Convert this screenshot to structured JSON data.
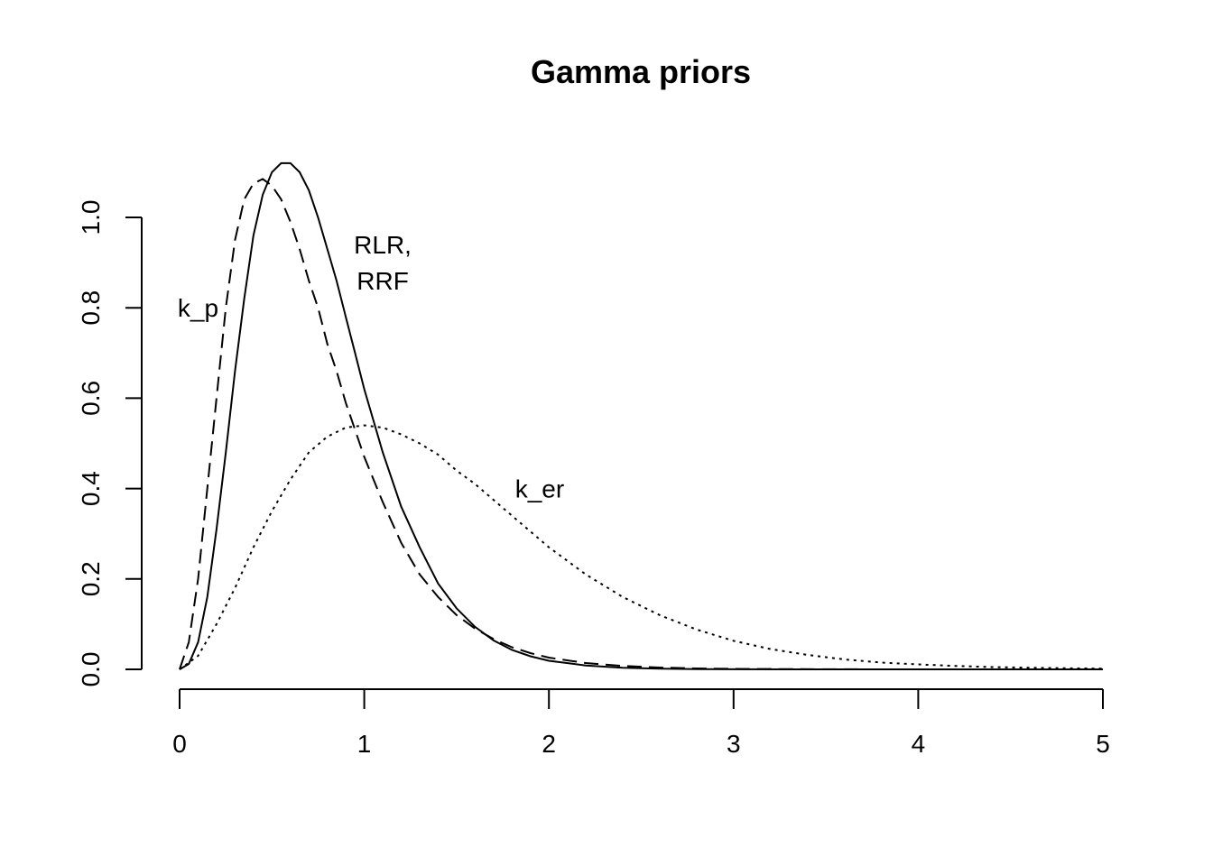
{
  "chart_data": {
    "type": "line",
    "title": "Gamma priors",
    "xlabel": "",
    "ylabel": "",
    "xlim": [
      0,
      5
    ],
    "ylim": [
      0,
      1.0
    ],
    "x_ticks": [
      "0",
      "1",
      "2",
      "3",
      "4",
      "5"
    ],
    "y_ticks": [
      "0.0",
      "0.2",
      "0.4",
      "0.6",
      "0.8",
      "1.0"
    ],
    "grid": false,
    "legend": "none",
    "series": [
      {
        "style": "solid",
        "x": [
          0,
          0.05,
          0.1,
          0.15,
          0.2,
          0.25,
          0.3,
          0.35,
          0.4,
          0.45,
          0.5,
          0.55,
          0.6,
          0.65,
          0.7,
          0.75,
          0.8,
          0.85,
          0.9,
          0.95,
          1.0,
          1.1,
          1.2,
          1.3,
          1.4,
          1.5,
          1.6,
          1.7,
          1.8,
          1.9,
          2.0,
          2.2,
          2.4,
          2.6,
          2.8,
          3.0,
          3.5,
          4.0,
          4.5,
          5.0
        ],
        "y": [
          0,
          0.012,
          0.06,
          0.16,
          0.31,
          0.48,
          0.66,
          0.82,
          0.96,
          1.05,
          1.1,
          1.12,
          1.12,
          1.1,
          1.06,
          1.0,
          0.93,
          0.86,
          0.78,
          0.7,
          0.62,
          0.48,
          0.36,
          0.27,
          0.19,
          0.135,
          0.094,
          0.064,
          0.043,
          0.029,
          0.019,
          0.0085,
          0.0036,
          0.0015,
          0.0006,
          0.00025,
          2e-05,
          0,
          0,
          0
        ]
      },
      {
        "style": "dashed",
        "x": [
          0,
          0.05,
          0.1,
          0.15,
          0.2,
          0.25,
          0.3,
          0.35,
          0.4,
          0.45,
          0.5,
          0.55,
          0.6,
          0.65,
          0.7,
          0.75,
          0.8,
          0.85,
          0.9,
          0.95,
          1.0,
          1.1,
          1.2,
          1.3,
          1.4,
          1.5,
          1.6,
          1.7,
          1.8,
          1.9,
          2.0,
          2.2,
          2.4,
          2.6,
          2.8,
          3.0,
          3.5,
          4.0,
          4.5,
          5.0
        ],
        "y": [
          0,
          0.06,
          0.2,
          0.4,
          0.6,
          0.8,
          0.95,
          1.04,
          1.075,
          1.085,
          1.07,
          1.04,
          0.99,
          0.93,
          0.86,
          0.8,
          0.72,
          0.66,
          0.59,
          0.53,
          0.47,
          0.37,
          0.28,
          0.21,
          0.16,
          0.12,
          0.09,
          0.067,
          0.049,
          0.036,
          0.026,
          0.014,
          0.0075,
          0.004,
          0.002,
          0.001,
          0.0002,
          0,
          0,
          0
        ]
      },
      {
        "style": "dotted",
        "x": [
          0,
          0.1,
          0.2,
          0.3,
          0.4,
          0.5,
          0.6,
          0.7,
          0.8,
          0.9,
          1.0,
          1.1,
          1.2,
          1.3,
          1.4,
          1.5,
          1.6,
          1.7,
          1.8,
          1.9,
          2.0,
          2.2,
          2.4,
          2.6,
          2.8,
          3.0,
          3.2,
          3.4,
          3.6,
          3.8,
          4.0,
          4.2,
          4.4,
          4.6,
          4.8,
          5.0
        ],
        "y": [
          0,
          0.03,
          0.1,
          0.18,
          0.27,
          0.35,
          0.42,
          0.48,
          0.515,
          0.535,
          0.54,
          0.535,
          0.52,
          0.5,
          0.475,
          0.44,
          0.41,
          0.375,
          0.34,
          0.305,
          0.27,
          0.21,
          0.16,
          0.12,
          0.088,
          0.063,
          0.045,
          0.032,
          0.022,
          0.015,
          0.011,
          0.0075,
          0.005,
          0.0035,
          0.0024,
          0.0016
        ]
      }
    ],
    "annotations": [
      {
        "text": "k_p",
        "x": 0.1,
        "y": 0.8
      },
      {
        "text": "RLR,",
        "x": 1.1,
        "y": 0.94
      },
      {
        "text": "RRF",
        "x": 1.1,
        "y": 0.86
      },
      {
        "text": "k_er",
        "x": 1.95,
        "y": 0.4
      }
    ]
  }
}
